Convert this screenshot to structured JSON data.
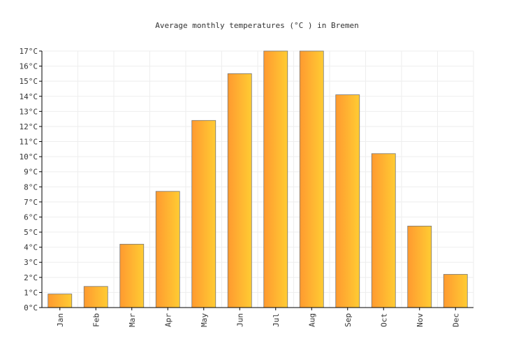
{
  "chart_data": {
    "type": "bar",
    "title": "Average monthly temperatures (°C ) in Bremen",
    "xlabel": "",
    "ylabel": "",
    "categories": [
      "Jan",
      "Feb",
      "Mar",
      "Apr",
      "May",
      "Jun",
      "Jul",
      "Aug",
      "Sep",
      "Oct",
      "Nov",
      "Dec"
    ],
    "values": [
      0.9,
      1.4,
      4.2,
      7.7,
      12.4,
      15.5,
      17.0,
      17.0,
      14.1,
      10.2,
      5.4,
      2.2
    ],
    "ylim": [
      0,
      17
    ],
    "y_ticks": [
      "0°C",
      "1°C",
      "2°C",
      "3°C",
      "4°C",
      "5°C",
      "6°C",
      "7°C",
      "8°C",
      "9°C",
      "10°C",
      "11°C",
      "12°C",
      "13°C",
      "14°C",
      "15°C",
      "16°C",
      "17°C"
    ],
    "grid": true,
    "legend": "none",
    "colors": {
      "bar_gradient_start": "#ff9a30",
      "bar_gradient_end": "#ffcc33",
      "bar_stroke": "#777777",
      "grid": "#eeeeee",
      "axis": "#000000",
      "text": "#333333"
    }
  }
}
